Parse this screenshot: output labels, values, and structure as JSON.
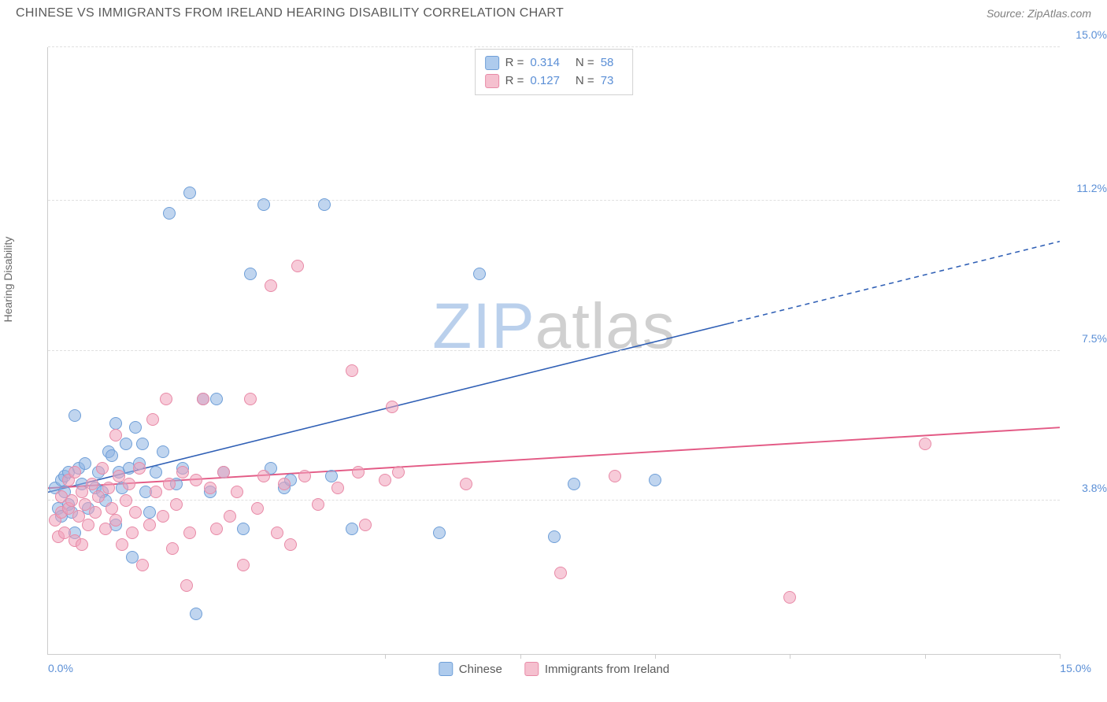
{
  "header": {
    "title": "CHINESE VS IMMIGRANTS FROM IRELAND HEARING DISABILITY CORRELATION CHART",
    "source": "Source: ZipAtlas.com"
  },
  "ylabel": "Hearing Disability",
  "watermark": {
    "zip": "ZIP",
    "atlas": "atlas"
  },
  "chart": {
    "type": "scatter",
    "xlim": [
      0,
      15
    ],
    "ylim": [
      0,
      15
    ],
    "x_origin_label": "0.0%",
    "x_max_label": "15.0%",
    "y_gridlines": [
      {
        "value": 3.8,
        "label": "3.8%"
      },
      {
        "value": 7.5,
        "label": "7.5%"
      },
      {
        "value": 11.2,
        "label": "11.2%"
      },
      {
        "value": 15.0,
        "label": "15.0%"
      }
    ],
    "x_ticks": [
      5,
      7,
      9,
      11,
      13,
      15
    ],
    "legend_top": [
      {
        "swatch_fill": "#aecbed",
        "swatch_stroke": "#6f9fd8",
        "r_label": "R =",
        "r_value": "0.314",
        "n_label": "N =",
        "n_value": "58"
      },
      {
        "swatch_fill": "#f5c0cf",
        "swatch_stroke": "#e88aa7",
        "r_label": "R =",
        "r_value": "0.127",
        "n_label": "N =",
        "n_value": "73"
      }
    ],
    "legend_bottom": [
      {
        "swatch_fill": "#aecbed",
        "swatch_stroke": "#6f9fd8",
        "label": "Chinese"
      },
      {
        "swatch_fill": "#f5c0cf",
        "swatch_stroke": "#e88aa7",
        "label": "Immigrants from Ireland"
      }
    ],
    "series": [
      {
        "name": "Chinese",
        "fill": "rgba(141,179,226,0.55)",
        "stroke": "#6f9fd8",
        "marker_radius": 8,
        "trend": {
          "y0": 4.0,
          "y15": 10.2,
          "solid_end_x": 10.1,
          "color": "#2f5fb5",
          "width": 2
        },
        "points": [
          [
            0.1,
            4.1
          ],
          [
            0.15,
            3.6
          ],
          [
            0.2,
            3.4
          ],
          [
            0.2,
            4.3
          ],
          [
            0.25,
            4.0
          ],
          [
            0.25,
            4.4
          ],
          [
            0.3,
            3.7
          ],
          [
            0.3,
            4.5
          ],
          [
            0.35,
            3.5
          ],
          [
            0.4,
            5.9
          ],
          [
            0.4,
            3.0
          ],
          [
            0.45,
            4.6
          ],
          [
            0.5,
            4.2
          ],
          [
            0.55,
            4.7
          ],
          [
            0.6,
            3.6
          ],
          [
            0.7,
            4.1
          ],
          [
            0.75,
            4.5
          ],
          [
            0.8,
            4.0
          ],
          [
            0.85,
            3.8
          ],
          [
            0.9,
            5.0
          ],
          [
            0.95,
            4.9
          ],
          [
            1.0,
            5.7
          ],
          [
            1.0,
            3.2
          ],
          [
            1.05,
            4.5
          ],
          [
            1.1,
            4.1
          ],
          [
            1.15,
            5.2
          ],
          [
            1.2,
            4.6
          ],
          [
            1.25,
            2.4
          ],
          [
            1.3,
            5.6
          ],
          [
            1.35,
            4.7
          ],
          [
            1.4,
            5.2
          ],
          [
            1.45,
            4.0
          ],
          [
            1.5,
            3.5
          ],
          [
            1.6,
            4.5
          ],
          [
            1.7,
            5.0
          ],
          [
            1.8,
            10.9
          ],
          [
            1.9,
            4.2
          ],
          [
            2.0,
            4.6
          ],
          [
            2.1,
            11.4
          ],
          [
            2.2,
            1.0
          ],
          [
            2.3,
            6.3
          ],
          [
            2.4,
            4.0
          ],
          [
            2.5,
            6.3
          ],
          [
            2.6,
            4.5
          ],
          [
            2.9,
            3.1
          ],
          [
            3.0,
            9.4
          ],
          [
            3.2,
            11.1
          ],
          [
            3.3,
            4.6
          ],
          [
            3.5,
            4.1
          ],
          [
            3.6,
            4.3
          ],
          [
            4.1,
            11.1
          ],
          [
            4.2,
            4.4
          ],
          [
            4.5,
            3.1
          ],
          [
            5.8,
            3.0
          ],
          [
            6.4,
            9.4
          ],
          [
            7.5,
            2.9
          ],
          [
            7.8,
            4.2
          ],
          [
            9.0,
            4.3
          ]
        ]
      },
      {
        "name": "Immigrants from Ireland",
        "fill": "rgba(240,160,185,0.55)",
        "stroke": "#e88aa7",
        "marker_radius": 8,
        "trend": {
          "y0": 4.1,
          "y15": 5.6,
          "solid_end_x": 15,
          "color": "#e35a85",
          "width": 2.5
        },
        "points": [
          [
            0.1,
            3.3
          ],
          [
            0.15,
            2.9
          ],
          [
            0.2,
            3.5
          ],
          [
            0.2,
            3.9
          ],
          [
            0.25,
            3.0
          ],
          [
            0.3,
            3.6
          ],
          [
            0.3,
            4.3
          ],
          [
            0.35,
            3.8
          ],
          [
            0.4,
            2.8
          ],
          [
            0.4,
            4.5
          ],
          [
            0.45,
            3.4
          ],
          [
            0.5,
            4.0
          ],
          [
            0.5,
            2.7
          ],
          [
            0.55,
            3.7
          ],
          [
            0.6,
            3.2
          ],
          [
            0.65,
            4.2
          ],
          [
            0.7,
            3.5
          ],
          [
            0.75,
            3.9
          ],
          [
            0.8,
            4.6
          ],
          [
            0.85,
            3.1
          ],
          [
            0.9,
            4.1
          ],
          [
            0.95,
            3.6
          ],
          [
            1.0,
            5.4
          ],
          [
            1.0,
            3.3
          ],
          [
            1.05,
            4.4
          ],
          [
            1.1,
            2.7
          ],
          [
            1.15,
            3.8
          ],
          [
            1.2,
            4.2
          ],
          [
            1.25,
            3.0
          ],
          [
            1.3,
            3.5
          ],
          [
            1.35,
            4.6
          ],
          [
            1.4,
            2.2
          ],
          [
            1.5,
            3.2
          ],
          [
            1.55,
            5.8
          ],
          [
            1.6,
            4.0
          ],
          [
            1.7,
            3.4
          ],
          [
            1.75,
            6.3
          ],
          [
            1.8,
            4.2
          ],
          [
            1.85,
            2.6
          ],
          [
            1.9,
            3.7
          ],
          [
            2.0,
            4.5
          ],
          [
            2.05,
            1.7
          ],
          [
            2.1,
            3.0
          ],
          [
            2.2,
            4.3
          ],
          [
            2.3,
            6.3
          ],
          [
            2.4,
            4.1
          ],
          [
            2.5,
            3.1
          ],
          [
            2.6,
            4.5
          ],
          [
            2.7,
            3.4
          ],
          [
            2.8,
            4.0
          ],
          [
            2.9,
            2.2
          ],
          [
            3.0,
            6.3
          ],
          [
            3.1,
            3.6
          ],
          [
            3.2,
            4.4
          ],
          [
            3.3,
            9.1
          ],
          [
            3.4,
            3.0
          ],
          [
            3.5,
            4.2
          ],
          [
            3.6,
            2.7
          ],
          [
            3.7,
            9.6
          ],
          [
            3.8,
            4.4
          ],
          [
            4.0,
            3.7
          ],
          [
            4.3,
            4.1
          ],
          [
            4.5,
            7.0
          ],
          [
            4.6,
            4.5
          ],
          [
            4.7,
            3.2
          ],
          [
            5.0,
            4.3
          ],
          [
            5.1,
            6.1
          ],
          [
            5.2,
            4.5
          ],
          [
            6.2,
            4.2
          ],
          [
            7.6,
            2.0
          ],
          [
            8.4,
            4.4
          ],
          [
            11.0,
            1.4
          ],
          [
            13.0,
            5.2
          ]
        ]
      }
    ]
  }
}
